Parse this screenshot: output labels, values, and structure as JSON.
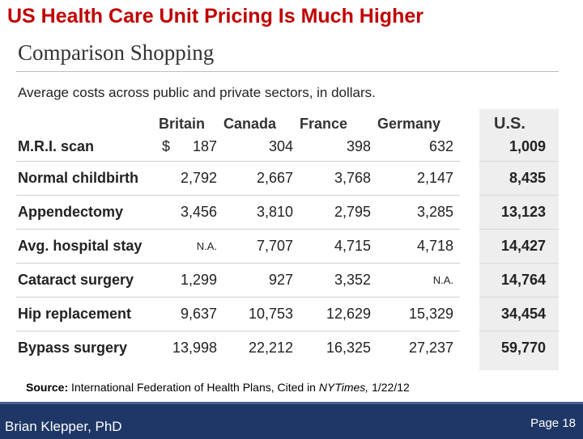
{
  "slide": {
    "title": "US Health Care Unit Pricing Is Much Higher"
  },
  "figure": {
    "heading": "Comparison Shopping",
    "subheading": "Average costs across public and private sectors, in dollars.",
    "dollar_sign": "$",
    "columns": [
      "Britain",
      "Canada",
      "France",
      "Germany",
      "U.S."
    ],
    "rows": [
      {
        "procedure": "M.R.I. scan",
        "values": [
          "187",
          "304",
          "398",
          "632",
          "1,009"
        ]
      },
      {
        "procedure": "Normal childbirth",
        "values": [
          "2,792",
          "2,667",
          "3,768",
          "2,147",
          "8,435"
        ]
      },
      {
        "procedure": "Appendectomy",
        "values": [
          "3,456",
          "3,810",
          "2,795",
          "3,285",
          "13,123"
        ]
      },
      {
        "procedure": "Avg. hospital stay",
        "values": [
          "N.A.",
          "7,707",
          "4,715",
          "4,718",
          "14,427"
        ]
      },
      {
        "procedure": "Cataract surgery",
        "values": [
          "1,299",
          "927",
          "3,352",
          "N.A.",
          "14,764"
        ]
      },
      {
        "procedure": "Hip replacement",
        "values": [
          "9,637",
          "10,753",
          "12,629",
          "15,329",
          "34,454"
        ]
      },
      {
        "procedure": "Bypass surgery",
        "values": [
          "13,998",
          "22,212",
          "16,325",
          "27,237",
          "59,770"
        ]
      }
    ]
  },
  "source": {
    "label": "Source:",
    "text_1": " International Federation of Health Plans, Cited in ",
    "publication": "NYTimes,",
    "date": " 1/22/12"
  },
  "footer": {
    "author": "Brian Klepper, PhD",
    "page": "Page 18"
  },
  "colors": {
    "title": "#c00000",
    "footer_bar": "#1f3766",
    "us_column_shade": "#eeeeee"
  }
}
